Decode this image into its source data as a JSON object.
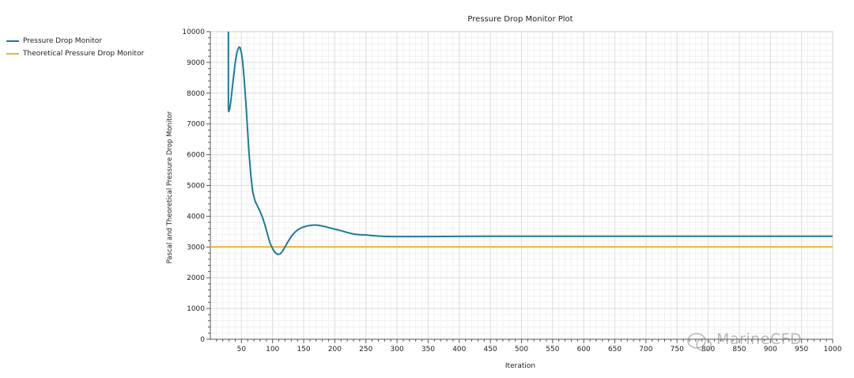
{
  "chart_data": {
    "type": "line",
    "title": "Pressure Drop Monitor Plot",
    "xlabel": "Iteration",
    "ylabel": "Pascal and Theoretical Pressure Drop Monitor",
    "xlim": [
      0,
      1000
    ],
    "ylim": [
      0,
      10000
    ],
    "x_ticks": [
      50,
      100,
      150,
      200,
      250,
      300,
      350,
      400,
      450,
      500,
      550,
      600,
      650,
      700,
      750,
      800,
      850,
      900,
      950,
      1000
    ],
    "y_ticks": [
      0,
      1000,
      2000,
      3000,
      4000,
      5000,
      6000,
      7000,
      8000,
      9000,
      10000
    ],
    "grid": true,
    "legend_position": "left",
    "series": [
      {
        "name": "Pressure Drop Monitor",
        "color": "#1f7a9a",
        "x": [
          29,
          29,
          29.5,
          31,
          33,
          36,
          40,
          43,
          46,
          48,
          50,
          52,
          54,
          56,
          58,
          60,
          62,
          65,
          68,
          72,
          76,
          80,
          84,
          88,
          92,
          96,
          100,
          104,
          108,
          112,
          116,
          120,
          125,
          130,
          135,
          140,
          145,
          150,
          155,
          160,
          165,
          170,
          175,
          180,
          185,
          190,
          200,
          210,
          220,
          230,
          240,
          250,
          260,
          270,
          280,
          290,
          300,
          320,
          350,
          400,
          450,
          500,
          600,
          700,
          800,
          900,
          1000
        ],
        "y": [
          10000,
          7500,
          7400,
          7480,
          7750,
          8300,
          9000,
          9350,
          9500,
          9480,
          9300,
          9000,
          8550,
          8000,
          7400,
          6750,
          6100,
          5350,
          4800,
          4480,
          4320,
          4150,
          3950,
          3700,
          3400,
          3120,
          2950,
          2820,
          2760,
          2770,
          2860,
          3000,
          3180,
          3340,
          3460,
          3550,
          3610,
          3650,
          3680,
          3700,
          3710,
          3710,
          3700,
          3680,
          3660,
          3630,
          3580,
          3530,
          3470,
          3420,
          3400,
          3390,
          3370,
          3355,
          3345,
          3340,
          3340,
          3340,
          3340,
          3345,
          3350,
          3350,
          3350,
          3350,
          3350,
          3350,
          3350
        ]
      },
      {
        "name": "Theoretical Pressure Drop Monitor",
        "color": "#f0b429",
        "x": [
          0,
          1000
        ],
        "y": [
          3000,
          3000
        ]
      }
    ]
  },
  "watermark": "MarineCFD"
}
